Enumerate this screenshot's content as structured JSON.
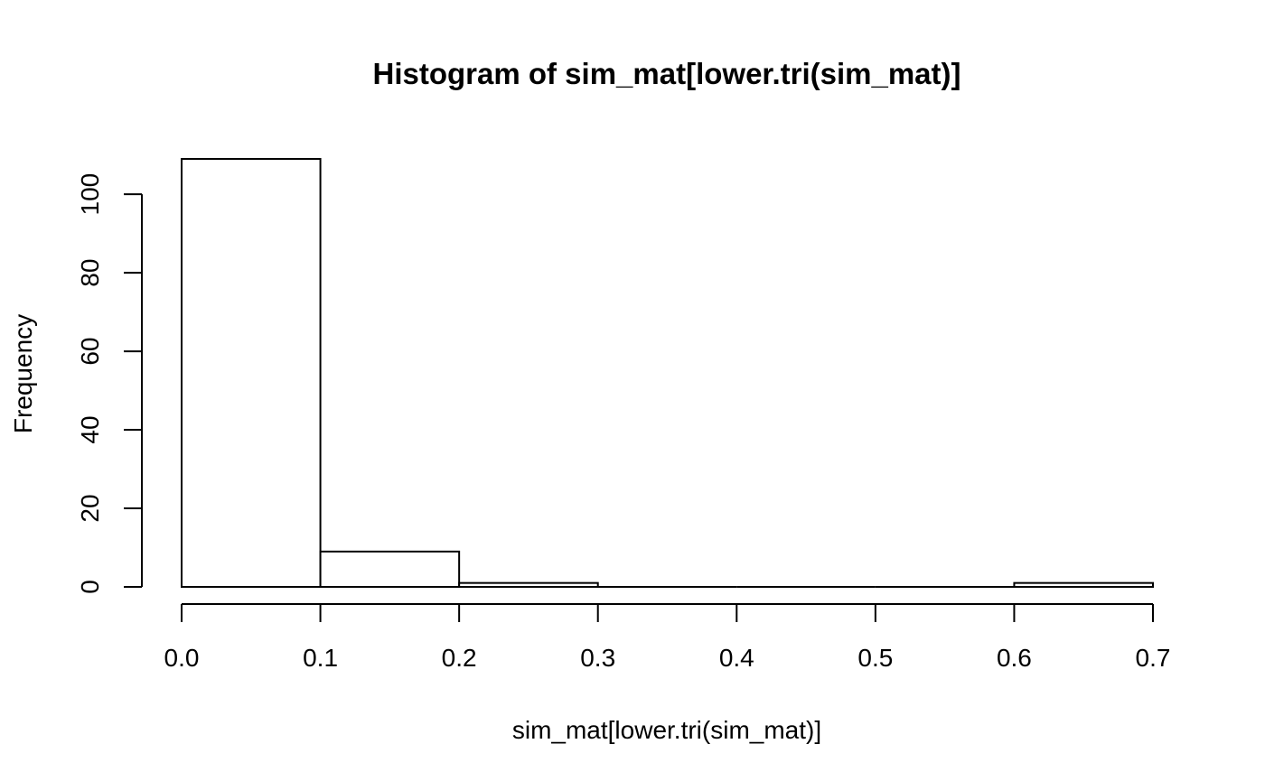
{
  "chart_data": {
    "type": "bar",
    "title": "Histogram of sim_mat[lower.tri(sim_mat)]",
    "xlabel": "sim_mat[lower.tri(sim_mat)]",
    "ylabel": "Frequency",
    "bins": [
      {
        "x0": 0.0,
        "x1": 0.1,
        "count": 109
      },
      {
        "x0": 0.1,
        "x1": 0.2,
        "count": 9
      },
      {
        "x0": 0.2,
        "x1": 0.3,
        "count": 1
      },
      {
        "x0": 0.3,
        "x1": 0.4,
        "count": 0
      },
      {
        "x0": 0.4,
        "x1": 0.5,
        "count": 0
      },
      {
        "x0": 0.5,
        "x1": 0.6,
        "count": 0
      },
      {
        "x0": 0.6,
        "x1": 0.7,
        "count": 1
      }
    ],
    "xlim": [
      0.0,
      0.7
    ],
    "ylim": [
      0,
      109
    ],
    "x_ticks": [
      "0.0",
      "0.1",
      "0.2",
      "0.3",
      "0.4",
      "0.5",
      "0.6",
      "0.7"
    ],
    "y_ticks": [
      "0",
      "20",
      "40",
      "60",
      "80",
      "100"
    ],
    "grid": false,
    "legend": "none",
    "colors": {
      "bar_fill": "#ffffff",
      "bar_stroke": "#000000"
    }
  }
}
